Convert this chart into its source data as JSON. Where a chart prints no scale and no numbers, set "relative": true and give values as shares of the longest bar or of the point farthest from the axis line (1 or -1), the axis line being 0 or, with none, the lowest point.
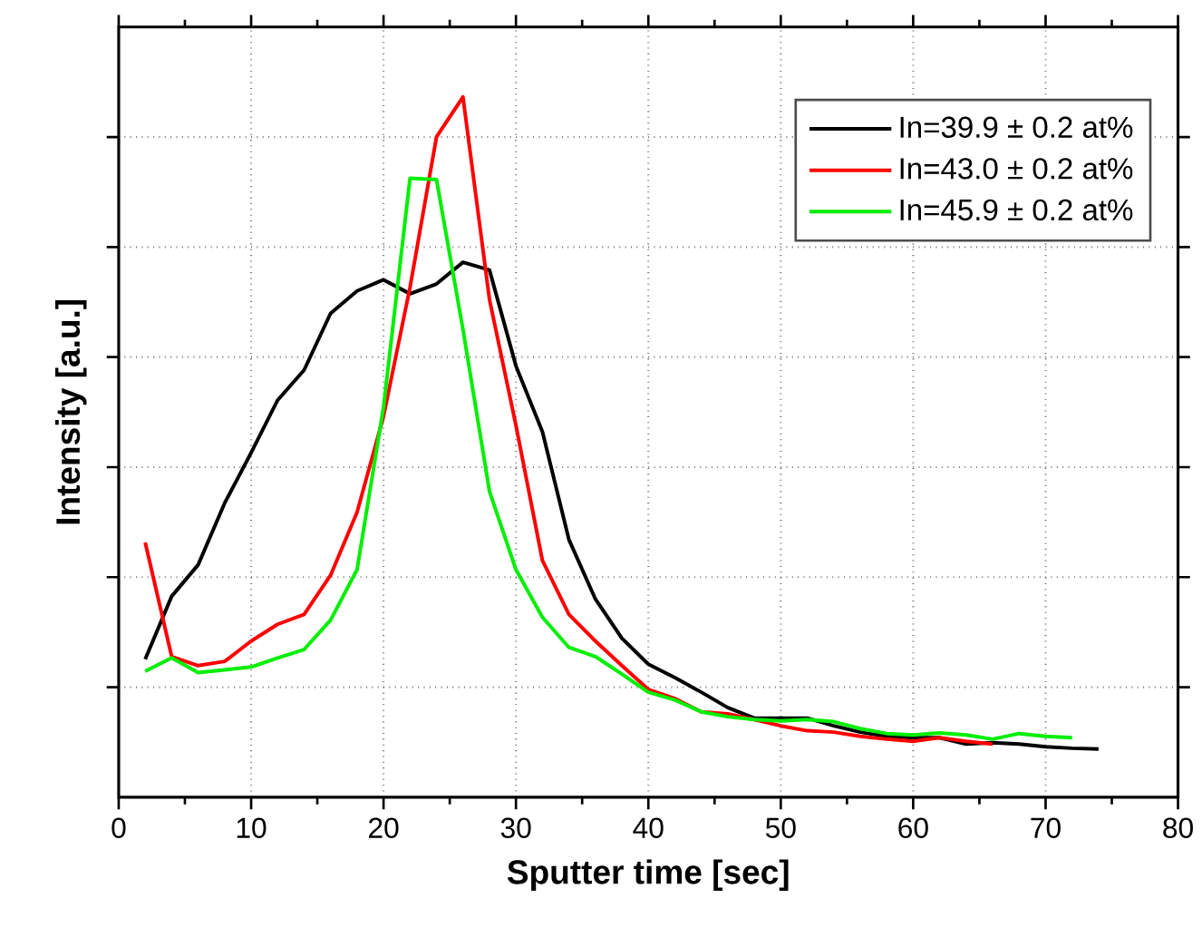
{
  "chart_data": {
    "type": "line",
    "xlabel": "Sputter time [sec]",
    "ylabel": "Intensity [a.u.]",
    "relative": true,
    "xlim": [
      0,
      80
    ],
    "xticks": [
      0,
      10,
      20,
      30,
      40,
      50,
      60,
      70,
      80
    ],
    "grid": true,
    "legend": "top right",
    "series": [
      {
        "name": "In=39.9 ± 0.2 at%",
        "color": "#000000",
        "x": [
          2,
          4,
          6,
          8,
          10,
          12,
          14,
          16,
          18,
          20,
          22,
          24,
          26,
          28,
          30,
          32,
          34,
          36,
          38,
          40,
          42,
          44,
          46,
          48,
          50,
          52,
          54,
          56,
          58,
          60,
          62,
          64,
          66,
          68,
          70,
          72,
          74
        ],
        "values": [
          0.197,
          0.287,
          0.332,
          0.42,
          0.492,
          0.567,
          0.61,
          0.691,
          0.723,
          0.739,
          0.719,
          0.733,
          0.764,
          0.753,
          0.616,
          0.522,
          0.368,
          0.283,
          0.227,
          0.19,
          0.171,
          0.15,
          0.128,
          0.113,
          null,
          0.113,
          0.102,
          0.093,
          0.087,
          0.085,
          0.085,
          0.076,
          0.078,
          0.076,
          0.072,
          0.07,
          0.069
        ]
      },
      {
        "name": "In=43.0 ± 0.2 at%",
        "color": "#ff0000",
        "x": [
          2,
          4,
          6,
          8,
          10,
          12,
          14,
          16,
          18,
          20,
          22,
          24,
          26,
          28,
          30,
          32,
          34,
          36,
          38,
          40,
          42,
          44,
          46,
          48,
          50,
          52,
          54,
          56,
          58,
          60,
          62,
          64,
          66
        ],
        "values": [
          0.364,
          0.201,
          0.188,
          0.194,
          0.223,
          0.247,
          0.261,
          0.317,
          0.407,
          0.544,
          0.728,
          0.943,
          1.0,
          0.711,
          0.531,
          0.338,
          0.261,
          0.223,
          0.188,
          0.154,
          0.141,
          0.122,
          0.119,
          0.111,
          0.102,
          0.095,
          0.093,
          0.087,
          0.083,
          0.08,
          0.085,
          0.08,
          0.076
        ]
      },
      {
        "name": "In=45.9 ± 0.2 at%",
        "color": "#00ee00",
        "x": [
          2,
          4,
          6,
          8,
          10,
          12,
          14,
          16,
          18,
          20,
          22,
          24,
          26,
          28,
          30,
          32,
          34,
          36,
          38,
          40,
          42,
          44,
          46,
          48,
          50,
          52,
          54,
          56,
          58,
          60,
          62,
          64,
          66,
          68,
          70,
          72
        ],
        "values": [
          0.18,
          0.199,
          0.178,
          0.182,
          0.186,
          0.199,
          0.211,
          0.253,
          0.325,
          0.557,
          0.884,
          0.882,
          0.668,
          0.437,
          0.325,
          0.257,
          0.214,
          0.201,
          0.176,
          0.15,
          0.139,
          0.122,
          0.115,
          0.111,
          0.109,
          0.111,
          0.108,
          0.098,
          0.091,
          0.089,
          0.092,
          0.089,
          0.083,
          0.091,
          0.087,
          0.085
        ]
      }
    ]
  }
}
